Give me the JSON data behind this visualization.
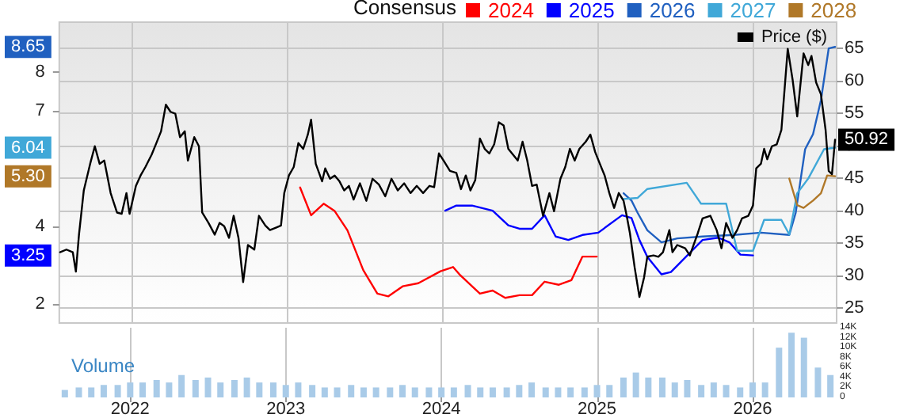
{
  "chart_data": {
    "type": "line",
    "legend_title": "Consensus",
    "legend": "top right",
    "grid": true,
    "y3label": "Volume",
    "xlim": [
      2021.53,
      2026.54
    ],
    "xticks": [
      2022,
      2023,
      2024,
      2025,
      2026
    ],
    "ylim": [
      1.5,
      9.29
    ],
    "yticks": [
      2,
      4,
      7,
      8,
      {
        "value": 8.65,
        "label": "8.65"
      },
      {
        "value": 6.04,
        "label": "6.04"
      },
      {
        "value": 5.3,
        "label": "5.30"
      },
      {
        "value": 3.25,
        "label": "3.25"
      }
    ],
    "y2lim": [
      22.7,
      69
    ],
    "y2ticks": [
      25,
      30,
      35,
      40,
      45,
      50,
      55,
      60,
      65,
      {
        "value": 50.92,
        "label": "50.92"
      }
    ],
    "y3lim": [
      0,
      14
    ],
    "y3ticks": [
      0,
      {
        "value": 2,
        "label": "2K"
      },
      {
        "value": 4,
        "label": "4K"
      },
      {
        "value": 6,
        "label": "6K"
      },
      {
        "value": 8,
        "label": "8K"
      },
      {
        "value": 10,
        "label": "10K"
      },
      {
        "value": 12,
        "label": "12K"
      },
      {
        "value": 14,
        "label": "14K"
      }
    ],
    "series": [
      {
        "name": "2024",
        "color": "#ff0000",
        "x": [
          2023.082,
          2023.153,
          2023.234,
          2023.305,
          2023.387,
          2023.489,
          2023.58,
          2023.651,
          2023.743,
          2023.844,
          2023.987,
          2024.068,
          2024.109,
          2024.241,
          2024.323,
          2024.404,
          2024.496,
          2024.577,
          2024.658,
          2024.75,
          2024.831,
          2024.902,
          2024.994
        ],
        "values": [
          5.01,
          4.29,
          4.59,
          4.4,
          3.9,
          2.87,
          2.26,
          2.19,
          2.45,
          2.53,
          2.84,
          2.95,
          2.76,
          2.26,
          2.34,
          2.15,
          2.22,
          2.22,
          2.57,
          2.49,
          2.61,
          3.22,
          3.22
        ]
      },
      {
        "name": "2025",
        "color": "#0000ff",
        "x": [
          2024.017,
          2024.089,
          2024.19,
          2024.323,
          2024.424,
          2024.496,
          2024.577,
          2024.658,
          2024.729,
          2024.811,
          2024.902,
          2025.004,
          2025.157,
          2025.218,
          2025.269,
          2025.32,
          2025.411,
          2025.472,
          2025.676,
          2025.777,
          2025.849,
          2025.92,
          2026.001
        ],
        "values": [
          4.41,
          4.54,
          4.54,
          4.41,
          4.03,
          3.94,
          3.94,
          4.29,
          3.74,
          3.65,
          3.78,
          3.84,
          4.29,
          4.22,
          3.65,
          3.21,
          2.76,
          2.82,
          3.65,
          3.71,
          3.59,
          3.27,
          3.25
        ]
      },
      {
        "name": "2026",
        "color": "#2060c0",
        "x": [
          2025.167,
          2025.218,
          2025.258,
          2025.32,
          2025.411,
          2025.513,
          2025.676,
          2025.879,
          2026.052,
          2026.235,
          2026.276,
          2026.337,
          2026.388,
          2026.439,
          2026.489,
          2026.53
        ],
        "values": [
          4.86,
          4.67,
          4.35,
          3.9,
          3.59,
          3.69,
          3.74,
          3.78,
          3.84,
          3.78,
          4.35,
          6.0,
          6.39,
          7.27,
          8.61,
          8.65
        ]
      },
      {
        "name": "2027",
        "color": "#40a8d8",
        "x": [
          2025.167,
          2025.258,
          2025.32,
          2025.574,
          2025.666,
          2025.828,
          2025.899,
          2026.001,
          2026.073,
          2026.184,
          2026.235,
          2026.286,
          2026.357,
          2026.459,
          2026.53
        ],
        "values": [
          4.71,
          4.74,
          4.97,
          5.13,
          4.59,
          4.59,
          3.37,
          3.37,
          4.17,
          4.17,
          3.79,
          4.86,
          5.24,
          6.0,
          6.04
        ]
      },
      {
        "name": "2028",
        "color": "#b07828",
        "x": [
          2026.235,
          2026.286,
          2026.327,
          2026.388,
          2026.439,
          2026.479,
          2026.53
        ],
        "values": [
          5.24,
          4.55,
          4.48,
          4.67,
          4.86,
          5.32,
          5.3
        ]
      },
      {
        "name": "Price ($)",
        "color": "#000000",
        "axis": "y2",
        "x": [
          2021.535,
          2021.576,
          2021.617,
          2021.637,
          2021.657,
          2021.688,
          2021.729,
          2021.759,
          2021.79,
          2021.82,
          2021.861,
          2021.902,
          2021.932,
          2021.963,
          2021.983,
          2022.024,
          2022.054,
          2022.085,
          2022.125,
          2022.156,
          2022.186,
          2022.217,
          2022.247,
          2022.278,
          2022.308,
          2022.339,
          2022.359,
          2022.4,
          2022.43,
          2022.451,
          2022.492,
          2022.532,
          2022.563,
          2022.593,
          2022.624,
          2022.654,
          2022.685,
          2022.715,
          2022.746,
          2022.787,
          2022.817,
          2022.858,
          2022.888,
          2022.929,
          2022.959,
          2022.98,
          2023.01,
          2023.041,
          2023.071,
          2023.102,
          2023.132,
          2023.153,
          2023.183,
          2023.224,
          2023.244,
          2023.275,
          2023.305,
          2023.336,
          2023.366,
          2023.397,
          2023.427,
          2023.468,
          2023.509,
          2023.549,
          2023.59,
          2023.631,
          2023.671,
          2023.712,
          2023.753,
          2023.794,
          2023.834,
          2023.875,
          2023.916,
          2023.946,
          2023.977,
          2024.007,
          2024.048,
          2024.089,
          2024.119,
          2024.15,
          2024.18,
          2024.211,
          2024.241,
          2024.272,
          2024.302,
          2024.333,
          2024.363,
          2024.394,
          2024.424,
          2024.455,
          2024.485,
          2024.516,
          2024.546,
          2024.577,
          2024.607,
          2024.648,
          2024.689,
          2024.719,
          2024.76,
          2024.791,
          2024.821,
          2024.852,
          2024.882,
          2024.923,
          2024.953,
          2024.984,
          2025.014,
          2025.045,
          2025.075,
          2025.106,
          2025.136,
          2025.167,
          2025.187,
          2025.208,
          2025.238,
          2025.269,
          2025.299,
          2025.32,
          2025.36,
          2025.391,
          2025.421,
          2025.462,
          2025.482,
          2025.513,
          2025.564,
          2025.594,
          2025.645,
          2025.676,
          2025.726,
          2025.767,
          2025.798,
          2025.828,
          2025.869,
          2025.899,
          2025.93,
          2025.971,
          2026.001,
          2026.022,
          2026.052,
          2026.073,
          2026.093,
          2026.123,
          2026.154,
          2026.184,
          2026.225,
          2026.256,
          2026.286,
          2026.327,
          2026.357,
          2026.378,
          2026.408,
          2026.439,
          2026.469,
          2026.489,
          2026.51,
          2026.53
        ],
        "values": [
          33.6,
          34.0,
          33.6,
          30.6,
          36.3,
          43.1,
          47.2,
          49.9,
          47.2,
          47.7,
          42.7,
          39.7,
          39.5,
          42.7,
          39.5,
          43.8,
          45.4,
          46.7,
          48.6,
          50.4,
          52.2,
          56.3,
          55.2,
          54.9,
          51.3,
          52.2,
          47.7,
          51.3,
          49.9,
          39.7,
          38.1,
          36.3,
          38.1,
          37.6,
          35.8,
          39.2,
          35.8,
          29.0,
          34.7,
          34.0,
          39.2,
          37.7,
          37.0,
          37.4,
          37.7,
          42.7,
          45.4,
          46.7,
          50.4,
          49.5,
          51.7,
          54.0,
          47.2,
          44.5,
          46.5,
          44.9,
          45.4,
          44.5,
          43.1,
          43.8,
          41.7,
          44.2,
          41.5,
          44.9,
          44.0,
          42.2,
          44.9,
          43.1,
          44.2,
          42.7,
          43.8,
          42.7,
          43.8,
          43.6,
          48.8,
          47.7,
          46.1,
          45.8,
          43.3,
          45.4,
          43.1,
          44.7,
          51.1,
          49.5,
          48.8,
          50.2,
          53.6,
          53.1,
          49.5,
          48.6,
          47.7,
          50.6,
          47.7,
          43.8,
          44.0,
          39.2,
          42.7,
          39.9,
          44.9,
          46.7,
          49.5,
          47.7,
          49.5,
          50.6,
          51.7,
          49.0,
          47.2,
          45.4,
          42.7,
          40.4,
          42.7,
          41.5,
          39.2,
          36.5,
          31.3,
          26.7,
          29.7,
          32.9,
          33.1,
          32.9,
          33.6,
          37.0,
          33.6,
          34.7,
          34.2,
          33.1,
          36.5,
          38.8,
          39.2,
          37.0,
          34.2,
          38.1,
          35.8,
          37.0,
          38.8,
          39.2,
          40.8,
          46.5,
          47.2,
          49.5,
          47.9,
          49.9,
          50.2,
          52.4,
          64.9,
          60.2,
          54.5,
          64.2,
          62.4,
          63.8,
          59.7,
          57.9,
          52.4,
          46.1,
          45.6,
          50.92
        ]
      },
      {
        "type": "bar",
        "axis": "y3",
        "color": "#a9cbe8",
        "x": [
          2021.58,
          2021.67,
          2021.75,
          2021.83,
          2021.92,
          2022.0,
          2022.08,
          2022.17,
          2022.25,
          2022.33,
          2022.42,
          2022.5,
          2022.58,
          2022.67,
          2022.75,
          2022.83,
          2022.92,
          2023.0,
          2023.08,
          2023.17,
          2023.25,
          2023.33,
          2023.42,
          2023.5,
          2023.58,
          2023.67,
          2023.75,
          2023.83,
          2023.92,
          2024.0,
          2024.08,
          2024.17,
          2024.25,
          2024.33,
          2024.42,
          2024.5,
          2024.58,
          2024.67,
          2024.75,
          2024.83,
          2024.92,
          2025.0,
          2025.08,
          2025.17,
          2025.25,
          2025.33,
          2025.42,
          2025.5,
          2025.58,
          2025.67,
          2025.75,
          2025.83,
          2025.92,
          2026.0,
          2026.08,
          2026.17,
          2026.25,
          2026.33,
          2026.42,
          2026.5
        ],
        "values": [
          1.5,
          2,
          2,
          2.5,
          2.5,
          3,
          3,
          3.5,
          3,
          4.5,
          3.5,
          4,
          3,
          3.5,
          4,
          3,
          3,
          2.5,
          3,
          2.5,
          2,
          2,
          2.5,
          2,
          2,
          2,
          2.5,
          2,
          2,
          2,
          2,
          2.5,
          2,
          2,
          2,
          2.5,
          3,
          2,
          2,
          2,
          2,
          2.5,
          2.5,
          4,
          5,
          4,
          4,
          3,
          3.5,
          2.5,
          3,
          2.5,
          2,
          3,
          3,
          10,
          13,
          12,
          6,
          4.5
        ]
      }
    ]
  }
}
